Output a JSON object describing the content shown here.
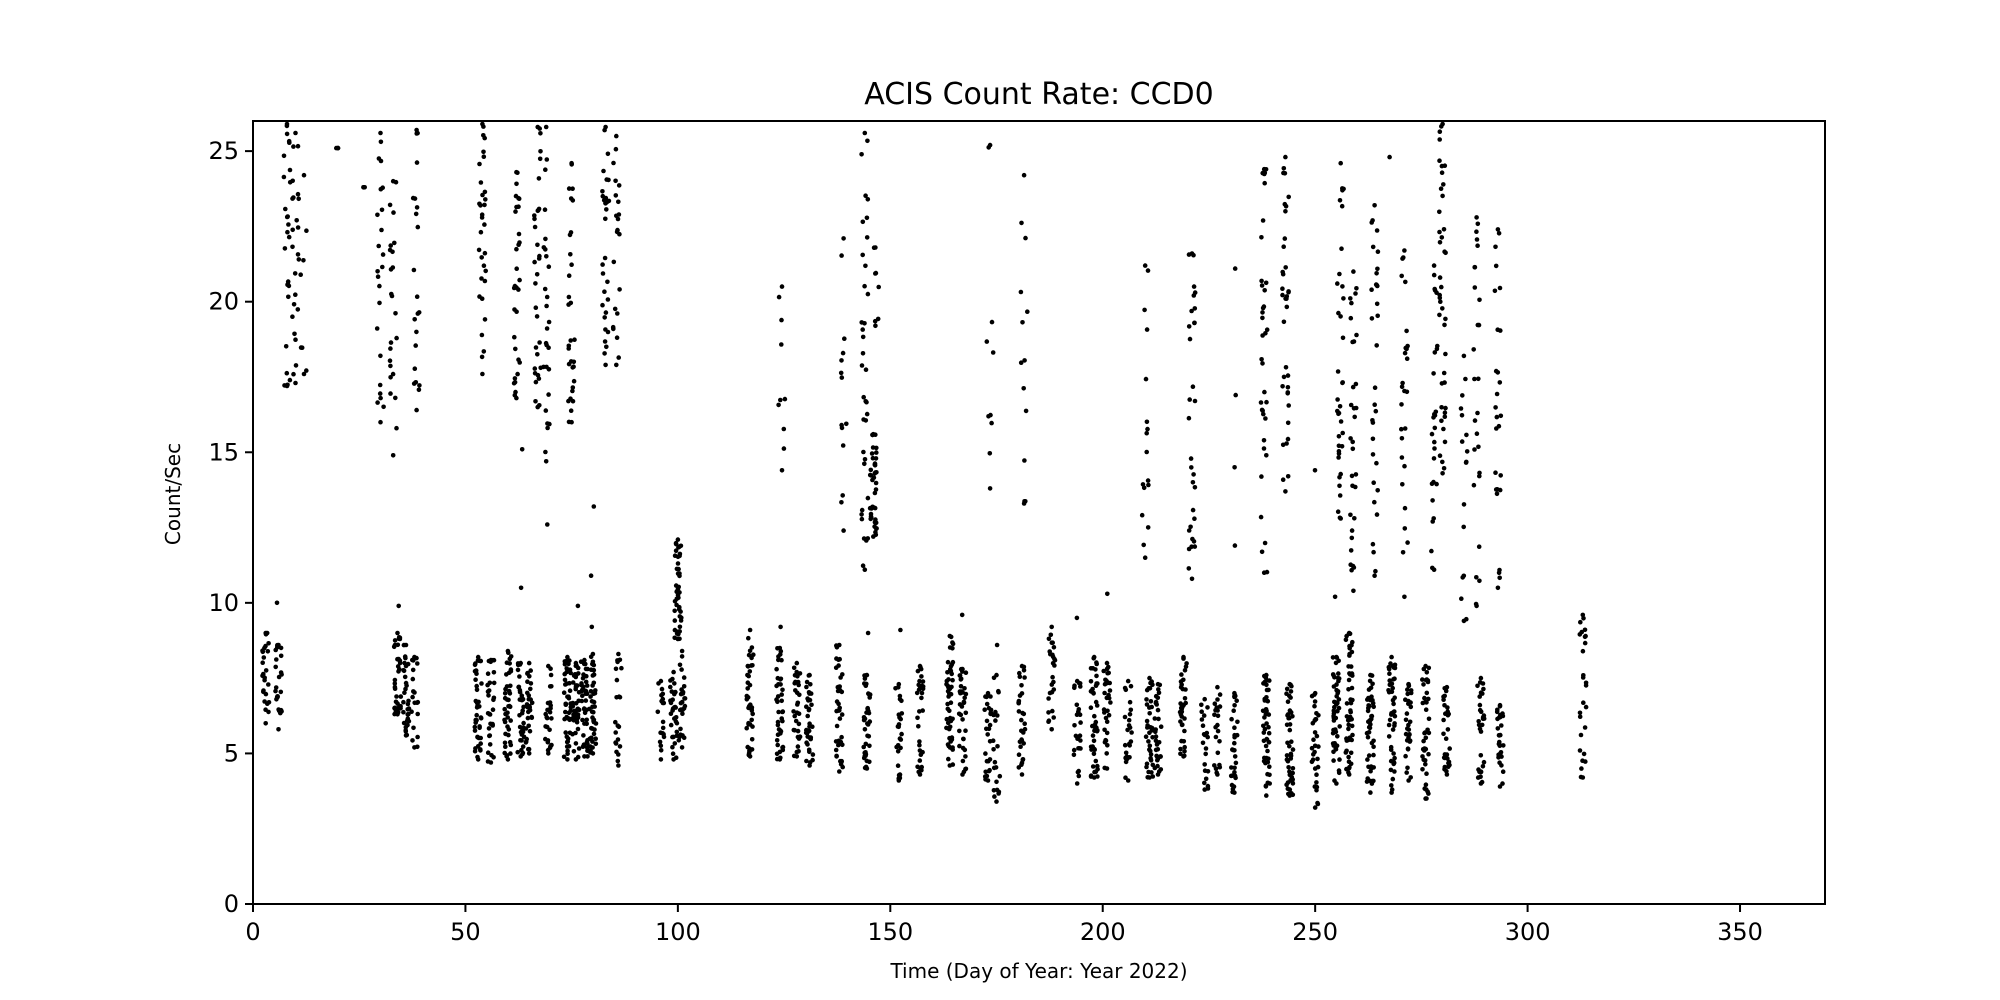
{
  "chart_data": {
    "type": "scatter",
    "title": "ACIS Count Rate: CCD0",
    "xlabel": "Time (Day of Year: Year 2022)",
    "ylabel": "Count/Sec",
    "xlim": [
      0,
      370
    ],
    "ylim": [
      0,
      26
    ],
    "x_ticks": [
      0,
      50,
      100,
      150,
      200,
      250,
      300,
      350
    ],
    "y_ticks": [
      0,
      5,
      10,
      15,
      20,
      25
    ],
    "grid": false,
    "marker_color": "#000000",
    "series": [
      {
        "clusters": [
          {
            "x": 3,
            "low": 6.0,
            "high": 9.0,
            "n": 22,
            "hi": [
              8.5,
              9.0
            ]
          },
          {
            "x": 6,
            "low": 5.8,
            "high": 8.6,
            "n": 22,
            "hi": [
              10.0
            ]
          },
          {
            "x": 8,
            "low": 17.2,
            "high": 25.9,
            "n": 25
          },
          {
            "x": 10,
            "low": 17.3,
            "high": 25.6,
            "n": 22
          },
          {
            "x": 12,
            "low": 17.6,
            "high": 24.2,
            "n": 6
          },
          {
            "x": 20,
            "low": 25.1,
            "high": 25.1,
            "n": 1
          },
          {
            "x": 26,
            "low": 23.8,
            "high": 23.8,
            "n": 1
          },
          {
            "x": 30,
            "low": 16.0,
            "high": 25.6,
            "n": 22
          },
          {
            "x": 33,
            "low": 14.9,
            "high": 24.0,
            "n": 22
          },
          {
            "x": 34,
            "low": 6.3,
            "high": 9.0,
            "n": 35,
            "hi": [
              9.9
            ]
          },
          {
            "x": 36,
            "low": 5.6,
            "high": 8.6,
            "n": 30
          },
          {
            "x": 38,
            "low": 5.2,
            "high": 8.2,
            "n": 18
          },
          {
            "x": 38.5,
            "low": 16.4,
            "high": 25.7,
            "n": 20
          },
          {
            "x": 53,
            "low": 4.8,
            "high": 8.2,
            "n": 40
          },
          {
            "x": 54,
            "low": 17.6,
            "high": 25.9,
            "n": 30
          },
          {
            "x": 56,
            "low": 4.7,
            "high": 8.1,
            "n": 30
          },
          {
            "x": 60,
            "low": 4.8,
            "high": 8.4,
            "n": 40
          },
          {
            "x": 62,
            "low": 16.8,
            "high": 24.3,
            "n": 30
          },
          {
            "x": 63,
            "low": 4.9,
            "high": 8.0,
            "n": 35,
            "hi": [
              10.5,
              15.1
            ]
          },
          {
            "x": 65,
            "low": 5.0,
            "high": 8.0,
            "n": 30
          },
          {
            "x": 67,
            "low": 16.5,
            "high": 25.8,
            "n": 30
          },
          {
            "x": 69,
            "low": 14.7,
            "high": 25.8,
            "n": 25,
            "hi": [
              12.6
            ]
          },
          {
            "x": 69.5,
            "low": 5.0,
            "high": 7.9,
            "n": 25
          },
          {
            "x": 74,
            "low": 4.8,
            "high": 8.2,
            "n": 45
          },
          {
            "x": 75,
            "low": 16.0,
            "high": 24.6,
            "n": 30
          },
          {
            "x": 76,
            "low": 4.8,
            "high": 8.0,
            "n": 40,
            "hi": [
              9.9
            ]
          },
          {
            "x": 78,
            "low": 4.9,
            "high": 8.1,
            "n": 40
          },
          {
            "x": 80,
            "low": 5.0,
            "high": 8.3,
            "n": 40,
            "hi": [
              9.2,
              10.9,
              13.2
            ]
          },
          {
            "x": 83,
            "low": 17.9,
            "high": 25.8,
            "n": 30
          },
          {
            "x": 85.5,
            "low": 17.9,
            "high": 25.5,
            "n": 20
          },
          {
            "x": 86,
            "low": 4.6,
            "high": 8.3,
            "n": 20
          },
          {
            "x": 96,
            "low": 4.8,
            "high": 7.4,
            "n": 18
          },
          {
            "x": 99,
            "low": 4.8,
            "high": 7.7,
            "n": 30
          },
          {
            "x": 100,
            "low": 8.8,
            "high": 12.1,
            "n": 45
          },
          {
            "x": 101,
            "low": 5.2,
            "high": 8.4,
            "n": 25
          },
          {
            "x": 117,
            "low": 4.9,
            "high": 9.1,
            "n": 40
          },
          {
            "x": 124,
            "low": 4.8,
            "high": 8.5,
            "n": 40,
            "hi": [
              9.2
            ]
          },
          {
            "x": 124.5,
            "low": 14.4,
            "high": 20.5,
            "n": 8
          },
          {
            "x": 128,
            "low": 4.9,
            "high": 8.0,
            "n": 30
          },
          {
            "x": 131,
            "low": 4.6,
            "high": 7.6,
            "n": 35
          },
          {
            "x": 138,
            "low": 4.4,
            "high": 8.6,
            "n": 40
          },
          {
            "x": 139,
            "low": 12.4,
            "high": 22.1,
            "n": 12
          },
          {
            "x": 144,
            "low": 11.1,
            "high": 25.6,
            "n": 35
          },
          {
            "x": 144.5,
            "low": 4.5,
            "high": 7.6,
            "n": 40,
            "hi": [
              9.0
            ]
          },
          {
            "x": 146,
            "low": 12.2,
            "high": 15.6,
            "n": 40
          },
          {
            "x": 146.5,
            "low": 19.2,
            "high": 21.8,
            "n": 6
          },
          {
            "x": 152,
            "low": 4.1,
            "high": 7.3,
            "n": 25,
            "hi": [
              9.1
            ]
          },
          {
            "x": 157,
            "low": 4.3,
            "high": 7.9,
            "n": 30
          },
          {
            "x": 164,
            "low": 4.6,
            "high": 8.9,
            "n": 50
          },
          {
            "x": 167,
            "low": 4.3,
            "high": 7.8,
            "n": 35,
            "hi": [
              9.6
            ]
          },
          {
            "x": 173,
            "low": 4.1,
            "high": 7.0,
            "n": 25
          },
          {
            "x": 173.5,
            "low": 13.8,
            "high": 25.2,
            "n": 8
          },
          {
            "x": 175,
            "low": 3.4,
            "high": 7.6,
            "n": 20,
            "hi": [
              8.6
            ]
          },
          {
            "x": 181,
            "low": 4.3,
            "high": 7.9,
            "n": 30
          },
          {
            "x": 181.5,
            "low": 13.3,
            "high": 24.2,
            "n": 12
          },
          {
            "x": 188,
            "low": 5.8,
            "high": 9.2,
            "n": 25
          },
          {
            "x": 194,
            "low": 4.0,
            "high": 7.4,
            "n": 25,
            "hi": [
              9.5
            ]
          },
          {
            "x": 198,
            "low": 4.2,
            "high": 8.2,
            "n": 45
          },
          {
            "x": 201,
            "low": 4.5,
            "high": 8.0,
            "n": 30,
            "hi": [
              10.3
            ]
          },
          {
            "x": 206,
            "low": 4.1,
            "high": 7.4,
            "n": 25
          },
          {
            "x": 210,
            "low": 11.5,
            "high": 21.2,
            "n": 15
          },
          {
            "x": 211,
            "low": 4.2,
            "high": 7.5,
            "n": 35
          },
          {
            "x": 213,
            "low": 4.3,
            "high": 7.3,
            "n": 30
          },
          {
            "x": 219,
            "low": 4.9,
            "high": 8.2,
            "n": 35
          },
          {
            "x": 221,
            "low": 10.8,
            "high": 21.6,
            "n": 30
          },
          {
            "x": 224,
            "low": 3.8,
            "high": 6.8,
            "n": 20
          },
          {
            "x": 227,
            "low": 4.3,
            "high": 7.2,
            "n": 20
          },
          {
            "x": 231,
            "low": 3.7,
            "high": 7.0,
            "n": 30,
            "hi": [
              11.9,
              14.5,
              16.9,
              21.1
            ]
          },
          {
            "x": 238,
            "low": 11.0,
            "high": 24.4,
            "n": 35
          },
          {
            "x": 238.5,
            "low": 3.6,
            "high": 7.6,
            "n": 45
          },
          {
            "x": 243,
            "low": 13.7,
            "high": 24.8,
            "n": 35
          },
          {
            "x": 244,
            "low": 3.6,
            "high": 7.3,
            "n": 45
          },
          {
            "x": 250,
            "low": 3.2,
            "high": 7.0,
            "n": 30,
            "hi": [
              14.4
            ]
          },
          {
            "x": 255,
            "low": 4.0,
            "high": 8.2,
            "n": 50,
            "hi": [
              10.2
            ]
          },
          {
            "x": 256,
            "low": 12.8,
            "high": 24.6,
            "n": 35
          },
          {
            "x": 258,
            "low": 4.3,
            "high": 9.0,
            "n": 50
          },
          {
            "x": 259,
            "low": 10.4,
            "high": 21.0,
            "n": 30
          },
          {
            "x": 263,
            "low": 3.7,
            "high": 7.6,
            "n": 45
          },
          {
            "x": 264,
            "low": 10.9,
            "high": 23.2,
            "n": 30
          },
          {
            "x": 268,
            "low": 3.7,
            "high": 8.2,
            "n": 45,
            "hi": [
              24.8
            ]
          },
          {
            "x": 271,
            "low": 10.2,
            "high": 21.7,
            "n": 25
          },
          {
            "x": 272,
            "low": 4.1,
            "high": 7.3,
            "n": 30
          },
          {
            "x": 276,
            "low": 3.5,
            "high": 7.9,
            "n": 40
          },
          {
            "x": 278,
            "low": 11.1,
            "high": 21.2,
            "n": 25
          },
          {
            "x": 280,
            "low": 14.3,
            "high": 25.9,
            "n": 40
          },
          {
            "x": 281,
            "low": 4.3,
            "high": 7.2,
            "n": 30
          },
          {
            "x": 285,
            "low": 9.4,
            "high": 18.2,
            "n": 15
          },
          {
            "x": 288,
            "low": 9.9,
            "high": 22.8,
            "n": 25
          },
          {
            "x": 289,
            "low": 4.0,
            "high": 7.5,
            "n": 30
          },
          {
            "x": 293,
            "low": 10.5,
            "high": 22.4,
            "n": 25
          },
          {
            "x": 293.5,
            "low": 3.9,
            "high": 6.6,
            "n": 30
          },
          {
            "x": 313,
            "low": 4.2,
            "high": 9.6,
            "n": 25
          }
        ]
      }
    ]
  }
}
